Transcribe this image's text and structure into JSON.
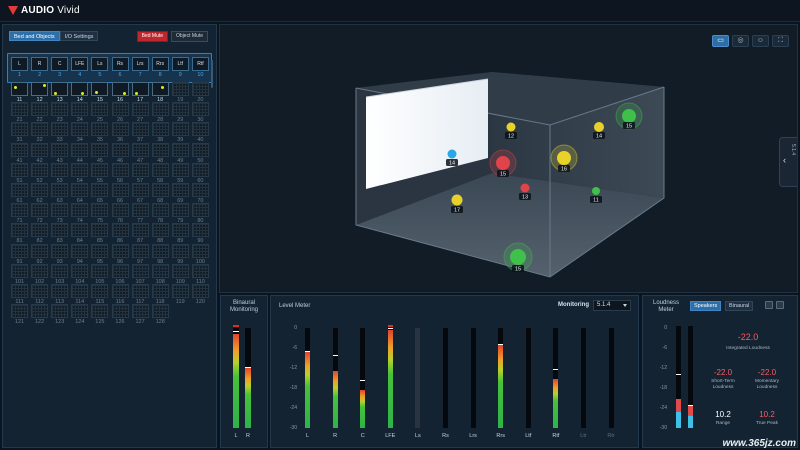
{
  "app": {
    "brand": "AUDIO",
    "brand_suffix": "Vivid"
  },
  "left_panel": {
    "tabs": [
      {
        "label": "Bed and Objects",
        "active": true
      },
      {
        "label": "I/O Settings",
        "active": false
      }
    ],
    "bed_mute_label": "Bed Mute",
    "object_mute_label": "Object Mute",
    "bed_channels": [
      {
        "num": "1",
        "label": "L"
      },
      {
        "num": "2",
        "label": "R"
      },
      {
        "num": "3",
        "label": "C"
      },
      {
        "num": "4",
        "label": "LFE"
      },
      {
        "num": "5",
        "label": "Ls"
      },
      {
        "num": "6",
        "label": "Rs"
      },
      {
        "num": "7",
        "label": "Lrs"
      },
      {
        "num": "8",
        "label": "Rrs"
      },
      {
        "num": "9",
        "label": "Ltf"
      },
      {
        "num": "10",
        "label": "Rtf"
      }
    ],
    "active_object_count": 8,
    "object_rows": [
      [
        "11",
        "12",
        "13",
        "14",
        "15",
        "16",
        "17",
        "18",
        "19",
        "20"
      ],
      [
        "21",
        "22",
        "23",
        "24",
        "25",
        "26",
        "27",
        "28",
        "29",
        "30"
      ],
      [
        "31",
        "32",
        "33",
        "34",
        "35",
        "36",
        "37",
        "38",
        "39",
        "40"
      ],
      [
        "41",
        "42",
        "43",
        "44",
        "45",
        "46",
        "47",
        "48",
        "49",
        "50"
      ],
      [
        "51",
        "52",
        "53",
        "54",
        "55",
        "56",
        "57",
        "58",
        "59",
        "60"
      ],
      [
        "61",
        "62",
        "63",
        "64",
        "65",
        "66",
        "67",
        "68",
        "69",
        "70"
      ],
      [
        "71",
        "72",
        "73",
        "74",
        "75",
        "76",
        "77",
        "78",
        "79",
        "80"
      ],
      [
        "81",
        "82",
        "83",
        "84",
        "85",
        "86",
        "87",
        "88",
        "89",
        "90"
      ],
      [
        "91",
        "92",
        "93",
        "94",
        "95",
        "96",
        "97",
        "98",
        "99",
        "100"
      ],
      [
        "101",
        "102",
        "103",
        "104",
        "105",
        "106",
        "107",
        "108",
        "109",
        "110"
      ],
      [
        "111",
        "112",
        "113",
        "114",
        "115",
        "116",
        "117",
        "118",
        "119",
        "120"
      ],
      [
        "121",
        "122",
        "123",
        "124",
        "125",
        "126",
        "127",
        "128"
      ]
    ]
  },
  "scene": {
    "tool_icons": [
      "speaker-layout-icon",
      "sphere-view-icon",
      "face-view-icon",
      "fullscreen-icon"
    ],
    "side_tab_label": "5.1.4",
    "objects": [
      {
        "label": "11",
        "color": "#3fc04a"
      },
      {
        "label": "12",
        "color": "#e8d22a"
      },
      {
        "label": "13",
        "color": "#e0444a"
      },
      {
        "label": "14",
        "color": "#e8d22a"
      },
      {
        "label": "14",
        "color": "#2aa7e6"
      },
      {
        "label": "15",
        "color": "#3fc04a"
      },
      {
        "label": "15",
        "color": "#e0444a"
      },
      {
        "label": "15",
        "color": "#3fc04a"
      },
      {
        "label": "16",
        "color": "#e8d22a"
      },
      {
        "label": "17",
        "color": "#e8d22a"
      }
    ]
  },
  "binaural": {
    "title": "Binaural Monitoring",
    "channels": [
      {
        "label": "L",
        "level": 0.94,
        "peak": 0.96,
        "clip": true
      },
      {
        "label": "R",
        "level": 0.6,
        "peak": 0.6,
        "clip": false
      }
    ]
  },
  "level_meter": {
    "title": "Level Meter",
    "monitoring_label": "Monitoring",
    "monitoring_value": "5.1.4",
    "scale": [
      "0",
      "-6",
      "-12",
      "-18",
      "-24",
      "-30"
    ],
    "channels": [
      {
        "label": "L",
        "level": 0.76,
        "peak": 0.76,
        "clip": false,
        "active": true
      },
      {
        "label": "R",
        "level": 0.57,
        "peak": 0.72,
        "clip": false,
        "active": true
      },
      {
        "label": "C",
        "level": 0.38,
        "peak": 0.47,
        "clip": false,
        "active": true
      },
      {
        "label": "LFE",
        "level": 0.98,
        "peak": 0.99,
        "clip": true,
        "active": true
      },
      {
        "label": "Ls",
        "level": 0.0,
        "peak": 0.0,
        "clip": false,
        "active": true
      },
      {
        "label": "Rs",
        "level": 0.0,
        "peak": 0.0,
        "clip": false,
        "active": true
      },
      {
        "label": "Lrs",
        "level": 0.0,
        "peak": 0.0,
        "clip": false,
        "active": true
      },
      {
        "label": "Rrs",
        "level": 0.83,
        "peak": 0.83,
        "clip": false,
        "active": true
      },
      {
        "label": "Ltf",
        "level": 0.0,
        "peak": 0.0,
        "clip": false,
        "active": true
      },
      {
        "label": "Rtf",
        "level": 0.49,
        "peak": 0.58,
        "clip": false,
        "active": true
      },
      {
        "label": "Ltr",
        "level": 0.0,
        "peak": 0.0,
        "clip": false,
        "active": false
      },
      {
        "label": "Rtr",
        "level": 0.0,
        "peak": 0.0,
        "clip": false,
        "active": false
      }
    ]
  },
  "loudness": {
    "title": "Loudness Meter",
    "tabs": [
      {
        "label": "Speakers",
        "active": true
      },
      {
        "label": "Binaural",
        "active": false
      }
    ],
    "scale": [
      "0",
      "-6",
      "-12",
      "-18",
      "-24",
      "-30"
    ],
    "integrated_value": "-22.0",
    "integrated_label": "Integrated Loudness",
    "short_term_value": "-22.0",
    "short_term_label": "Short-Term Loudness",
    "momentary_value": "-22.0",
    "momentary_label": "Momentary Loudness",
    "range_value": "10.2",
    "range_label": "Range",
    "true_peak_value": "10.2",
    "true_peak_label": "True Peak",
    "bars": [
      {
        "level": 0.28,
        "peak": 0.52
      },
      {
        "level": 0.22,
        "peak": 0.22
      }
    ]
  },
  "watermark": "www.365jz.com"
}
